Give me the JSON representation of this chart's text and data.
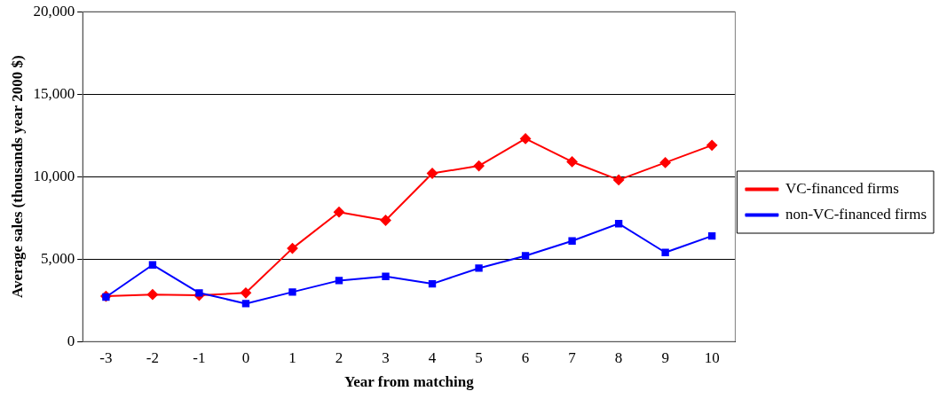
{
  "chart_data": {
    "type": "line",
    "xlabel": "Year from matching",
    "ylabel": "Average sales (thousands year 2000 $)",
    "categories": [
      "-3",
      "-2",
      "-1",
      "0",
      "1",
      "2",
      "3",
      "4",
      "5",
      "6",
      "7",
      "8",
      "9",
      "10"
    ],
    "ylim": [
      0,
      20000
    ],
    "yticks": [
      0,
      {
        "value": 5000,
        "label": "5,000"
      },
      {
        "value": 10000,
        "label": "10,000"
      },
      {
        "value": 15000,
        "label": "15,000"
      },
      {
        "value": 20000,
        "label": "20,000"
      }
    ],
    "grid": "y",
    "legend": "right",
    "series": [
      {
        "name": "VC-financed firms",
        "color": "#ff0000",
        "marker": "diamond",
        "values": [
          2750,
          2850,
          2800,
          2950,
          5650,
          7850,
          7350,
          10200,
          10650,
          12300,
          10900,
          9800,
          10850,
          11900
        ]
      },
      {
        "name": "non-VC-financed firms",
        "color": "#0000ff",
        "marker": "square",
        "values": [
          2700,
          4650,
          2950,
          2300,
          3000,
          3700,
          3950,
          3500,
          4450,
          5200,
          6100,
          7150,
          5400,
          6400
        ]
      }
    ]
  }
}
